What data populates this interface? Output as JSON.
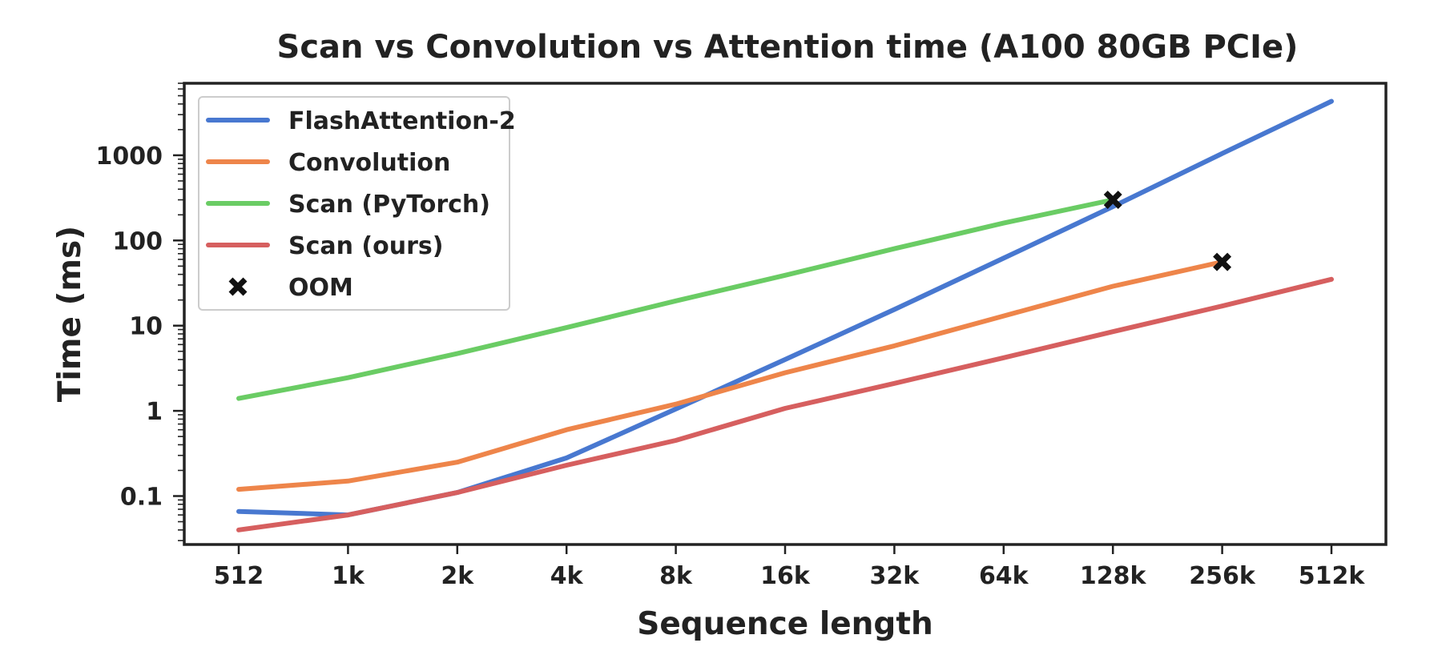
{
  "chart_data": {
    "type": "line",
    "title": "Scan vs Convolution vs Attention time (A100 80GB PCIe)",
    "xlabel": "Sequence length",
    "ylabel": "Time (ms)",
    "yscale": "log",
    "ylim": [
      0.027,
      7000
    ],
    "categories": [
      "512",
      "1k",
      "2k",
      "4k",
      "8k",
      "16k",
      "32k",
      "64k",
      "128k",
      "256k",
      "512k"
    ],
    "yticks": [
      {
        "value": 0.1,
        "label": "0.1"
      },
      {
        "value": 1,
        "label": "1"
      },
      {
        "value": 10,
        "label": "10"
      },
      {
        "value": 100,
        "label": "100"
      },
      {
        "value": 1000,
        "label": "1000"
      }
    ],
    "legend_position": "upper-left",
    "series": [
      {
        "name": "FlashAttention-2",
        "color": "#4878d0",
        "values": [
          0.066,
          0.06,
          0.11,
          0.28,
          1.05,
          4.0,
          15.5,
          62,
          250,
          1050,
          4300
        ]
      },
      {
        "name": "Convolution",
        "color": "#ee854a",
        "values": [
          0.12,
          0.15,
          0.25,
          0.6,
          1.2,
          2.8,
          5.8,
          13,
          29,
          56,
          null
        ]
      },
      {
        "name": "Scan (PyTorch)",
        "color": "#6acc64",
        "values": [
          1.4,
          2.45,
          4.7,
          9.5,
          19.5,
          39,
          80,
          160,
          300,
          null,
          null
        ]
      },
      {
        "name": "Scan (ours)",
        "color": "#d65f5f",
        "values": [
          0.04,
          0.06,
          0.11,
          0.23,
          0.45,
          1.07,
          2.1,
          4.2,
          8.5,
          17,
          35
        ]
      }
    ],
    "markers": {
      "name": "OOM",
      "symbol": "✖",
      "color": "#111111",
      "points": [
        {
          "category": "128k",
          "value": 300
        },
        {
          "category": "256k",
          "value": 56
        }
      ]
    }
  }
}
